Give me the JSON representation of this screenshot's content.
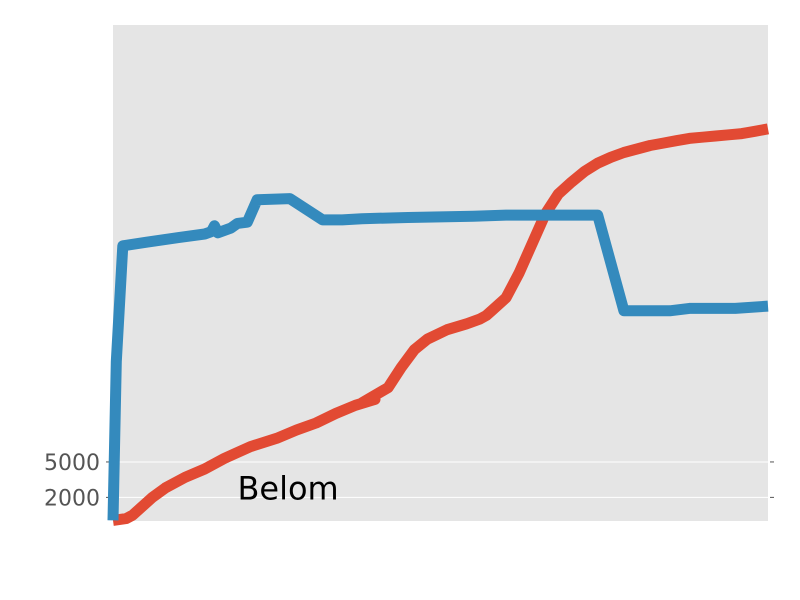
{
  "chart_data": {
    "type": "line",
    "title": "",
    "xlabel": "",
    "ylabel": "",
    "grid": true,
    "background": "#E5E5E5",
    "ylim": [
      0,
      42000
    ],
    "y_ticks": [
      {
        "value": 2000,
        "label": "2000"
      },
      {
        "value": 5000,
        "label": "5000"
      }
    ],
    "annotations": [
      {
        "text": "Belom",
        "x": 19,
        "y": 1800
      }
    ],
    "xlim": [
      0,
      100
    ],
    "series": [
      {
        "color": "#E24A33",
        "points": [
          [
            0,
            50
          ],
          [
            2,
            200
          ],
          [
            3,
            500
          ],
          [
            6,
            2000
          ],
          [
            8,
            2800
          ],
          [
            11,
            3700
          ],
          [
            14,
            4400
          ],
          [
            17,
            5300
          ],
          [
            19,
            5800
          ],
          [
            21,
            6300
          ],
          [
            25,
            7000
          ],
          [
            28,
            7700
          ],
          [
            31,
            8300
          ],
          [
            34,
            9100
          ],
          [
            37,
            9800
          ],
          [
            40,
            10300
          ],
          [
            38,
            10000
          ],
          [
            42,
            11300
          ],
          [
            44,
            13000
          ],
          [
            46,
            14500
          ],
          [
            48,
            15400
          ],
          [
            51,
            16200
          ],
          [
            54,
            16700
          ],
          [
            56,
            17100
          ],
          [
            57,
            17400
          ],
          [
            58,
            17900
          ],
          [
            60,
            18900
          ],
          [
            62,
            21000
          ],
          [
            64,
            23500
          ],
          [
            66,
            26000
          ],
          [
            68,
            27700
          ],
          [
            70,
            28700
          ],
          [
            72,
            29600
          ],
          [
            74,
            30300
          ],
          [
            76,
            30800
          ],
          [
            78,
            31200
          ],
          [
            80,
            31500
          ],
          [
            82,
            31800
          ],
          [
            84,
            32000
          ],
          [
            86,
            32200
          ],
          [
            88,
            32400
          ],
          [
            90,
            32500
          ],
          [
            92,
            32600
          ],
          [
            94,
            32700
          ],
          [
            96,
            32800
          ],
          [
            98,
            33000
          ],
          [
            100,
            33200
          ]
        ]
      },
      {
        "color": "#348ABD",
        "points": [
          [
            0,
            50
          ],
          [
            0.5,
            13500
          ],
          [
            1.5,
            23300
          ],
          [
            5,
            23600
          ],
          [
            10,
            24000
          ],
          [
            14,
            24300
          ],
          [
            15,
            24500
          ],
          [
            15.5,
            25000
          ],
          [
            16,
            24400
          ],
          [
            18,
            24800
          ],
          [
            19,
            25200
          ],
          [
            20.5,
            25300
          ],
          [
            22,
            27200
          ],
          [
            27,
            27300
          ],
          [
            32,
            25500
          ],
          [
            35,
            25500
          ],
          [
            38,
            25600
          ],
          [
            45,
            25700
          ],
          [
            55,
            25800
          ],
          [
            60,
            25900
          ],
          [
            65,
            25900
          ],
          [
            70,
            25900
          ],
          [
            74,
            25900
          ],
          [
            78,
            17800
          ],
          [
            85,
            17800
          ],
          [
            88,
            18000
          ],
          [
            95,
            18000
          ],
          [
            100,
            18200
          ]
        ]
      }
    ]
  }
}
